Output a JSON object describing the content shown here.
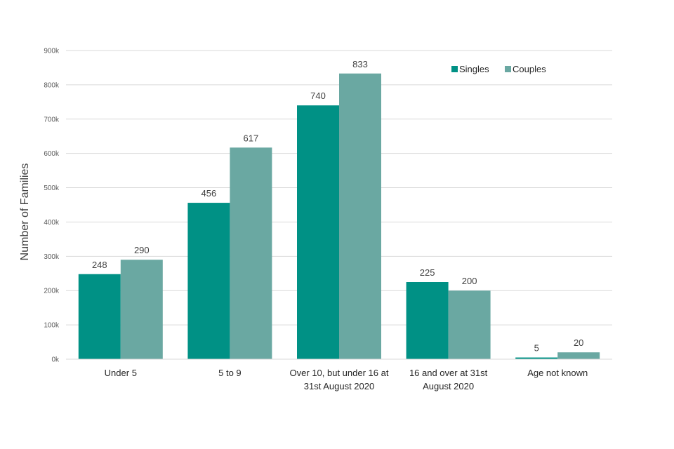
{
  "chart_data": {
    "type": "bar",
    "title": "",
    "xlabel": "",
    "ylabel": "Number of Families",
    "ylim": [
      0,
      900
    ],
    "yticks": [
      0,
      100,
      200,
      300,
      400,
      500,
      600,
      700,
      800,
      900
    ],
    "ytick_labels": [
      "0k",
      "100k",
      "200k",
      "300k",
      "400k",
      "500k",
      "600k",
      "700k",
      "800k",
      "900k"
    ],
    "grid": true,
    "legend_position": "top-right",
    "categories": [
      [
        "Under 5"
      ],
      [
        "5 to 9"
      ],
      [
        "Over 10, but under 16 at",
        "31st August 2020"
      ],
      [
        "16 and over at 31st",
        "August 2020"
      ],
      [
        "Age not known"
      ]
    ],
    "series": [
      {
        "name": "Singles",
        "color": "#009185",
        "values": [
          248,
          456,
          740,
          225,
          5
        ]
      },
      {
        "name": "Couples",
        "color": "#6AA8A2",
        "values": [
          290,
          617,
          833,
          200,
          20
        ]
      }
    ]
  }
}
